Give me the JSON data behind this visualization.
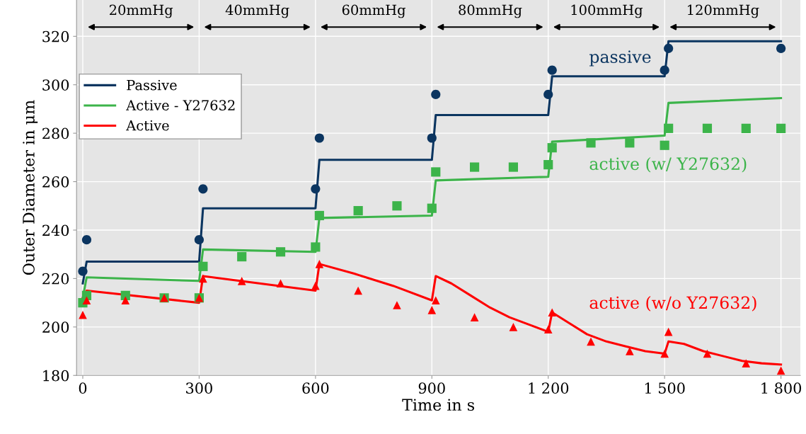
{
  "chart_data": {
    "type": "line",
    "xlabel": "Time in s",
    "ylabel": "Outer Diameter in μm",
    "xlim": [
      -16,
      1850
    ],
    "ylim": [
      180,
      335
    ],
    "xticks": [
      0,
      300,
      600,
      900,
      {
        "value": 1200,
        "label": "1 200"
      },
      {
        "value": 1500,
        "label": "1 500"
      },
      {
        "value": 1800,
        "label": "1 800"
      }
    ],
    "yticks": [
      180,
      200,
      220,
      240,
      260,
      280,
      300,
      320
    ],
    "grid": true,
    "legend": "top left",
    "series": [
      {
        "name": "Passive",
        "color": "#0b3560",
        "x": [
          0,
          10,
          300,
          310,
          600,
          610,
          900,
          910,
          1200,
          1210,
          1500,
          1510,
          1800
        ],
        "values": [
          218,
          227,
          227,
          249,
          249,
          269,
          269,
          287.5,
          287.5,
          303.5,
          303.5,
          318,
          318
        ]
      },
      {
        "name": "Active - Y27632",
        "color": "#3cb44a",
        "x": [
          0,
          10,
          300,
          310,
          600,
          610,
          900,
          910,
          1200,
          1210,
          1500,
          1510,
          1800
        ],
        "values": [
          212,
          220.5,
          219,
          232,
          231,
          245,
          246,
          260.5,
          262,
          276.5,
          279,
          292.5,
          294.5
        ]
      },
      {
        "name": "Active",
        "color": "#ff0000",
        "x": [
          0,
          10,
          300,
          310,
          600,
          610,
          700,
          800,
          900,
          910,
          950,
          1000,
          1050,
          1100,
          1150,
          1200,
          1210,
          1250,
          1300,
          1350,
          1400,
          1450,
          1500,
          1510,
          1550,
          1600,
          1650,
          1700,
          1750,
          1800
        ],
        "values": [
          212,
          215,
          210,
          221,
          215,
          226,
          222,
          217,
          211,
          221,
          218,
          213,
          208,
          204,
          201,
          198,
          206,
          202,
          197,
          194,
          192,
          190,
          189,
          194,
          193,
          190,
          188,
          186,
          185,
          184.5
        ]
      },
      {
        "type": "scatter",
        "marker": "circle",
        "color": "#0b3560",
        "x": [
          0,
          10,
          300,
          310,
          600,
          610,
          900,
          910,
          1200,
          1210,
          1500,
          1510,
          1800
        ],
        "values": [
          223,
          236,
          236,
          257,
          257,
          278,
          278,
          296,
          296,
          306,
          306,
          315,
          315
        ]
      },
      {
        "type": "scatter",
        "marker": "square",
        "color": "#3cb44a",
        "x": [
          0,
          10,
          110,
          210,
          300,
          310,
          410,
          510,
          600,
          610,
          710,
          810,
          900,
          910,
          1010,
          1110,
          1200,
          1210,
          1310,
          1410,
          1500,
          1510,
          1610,
          1710,
          1800
        ],
        "values": [
          210,
          213,
          213,
          212,
          212,
          225,
          229,
          231,
          233,
          246,
          248,
          250,
          249,
          264,
          266,
          266,
          267,
          274,
          276,
          276,
          275,
          282,
          282,
          282,
          282
        ]
      },
      {
        "type": "scatter",
        "marker": "triangle",
        "color": "#ff0000",
        "x": [
          0,
          10,
          110,
          210,
          300,
          310,
          410,
          510,
          600,
          610,
          710,
          810,
          900,
          910,
          1010,
          1110,
          1200,
          1210,
          1310,
          1410,
          1500,
          1510,
          1610,
          1710,
          1800
        ],
        "values": [
          205,
          211,
          211,
          212,
          212,
          220,
          219,
          218,
          217,
          226,
          215,
          209,
          207,
          211,
          204,
          200,
          199,
          206,
          194,
          190,
          189,
          198,
          189,
          185,
          182
        ]
      }
    ],
    "annotations": [
      "passive",
      "active (w/ Y27632)",
      "active (w/o Y27632)",
      "20mmHg",
      "40mmHg",
      "60mmHg",
      "80mmHg",
      "100mmHg",
      "120mmHg"
    ]
  }
}
